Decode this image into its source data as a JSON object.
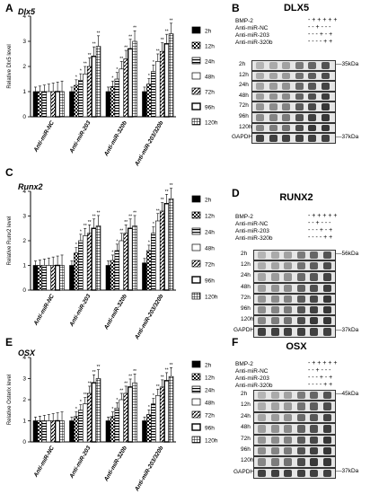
{
  "panels": {
    "A": "A",
    "B": "B",
    "C": "C",
    "D": "D",
    "E": "E",
    "F": "F"
  },
  "legend_labels": [
    "2h",
    "12h",
    "24h",
    "48h",
    "72h",
    "96h",
    "120h"
  ],
  "chart_data": [
    {
      "type": "bar",
      "panel": "A",
      "title": "Dlx5",
      "ylabel": "Relative Dlx5 level",
      "ylim": [
        0,
        4
      ],
      "yticks": [
        "0",
        "1",
        "2",
        "3",
        "4"
      ],
      "categories": [
        "Anti-miR-NC",
        "Anti-miR-203",
        "Anti-miR-320b",
        "Anti-miR-203/320b"
      ],
      "series": [
        {
          "name": "2h",
          "values": [
            1.0,
            1.0,
            1.0,
            1.0
          ]
        },
        {
          "name": "12h",
          "values": [
            1.0,
            1.25,
            1.2,
            1.3
          ]
        },
        {
          "name": "24h",
          "values": [
            1.0,
            1.45,
            1.5,
            1.8
          ]
        },
        {
          "name": "48h",
          "values": [
            1.0,
            1.7,
            1.9,
            2.2
          ]
        },
        {
          "name": "72h",
          "values": [
            1.0,
            2.0,
            2.3,
            2.6
          ]
        },
        {
          "name": "96h",
          "values": [
            1.0,
            2.4,
            2.7,
            2.9
          ]
        },
        {
          "name": "120h",
          "values": [
            1.0,
            2.8,
            3.0,
            3.3
          ]
        }
      ],
      "annotations": [
        "*",
        "**"
      ]
    },
    {
      "type": "bar",
      "panel": "C",
      "title": "Runx2",
      "ylabel": "Relative Runx2 level",
      "ylim": [
        0,
        4
      ],
      "yticks": [
        "0",
        "1",
        "2",
        "3",
        "4"
      ],
      "categories": [
        "Anti-miR-NC",
        "Anti-miR-203",
        "Anti-miR-320b",
        "Anti-miR-203/320b"
      ],
      "series": [
        {
          "name": "2h",
          "values": [
            1.0,
            1.0,
            1.0,
            1.1
          ]
        },
        {
          "name": "12h",
          "values": [
            1.0,
            1.5,
            1.2,
            1.6
          ]
        },
        {
          "name": "24h",
          "values": [
            1.0,
            2.0,
            1.6,
            2.3
          ]
        },
        {
          "name": "48h",
          "values": [
            1.0,
            2.2,
            2.0,
            2.8
          ]
        },
        {
          "name": "72h",
          "values": [
            1.0,
            2.3,
            2.3,
            3.2
          ]
        },
        {
          "name": "96h",
          "values": [
            1.0,
            2.5,
            2.5,
            3.5
          ]
        },
        {
          "name": "120h",
          "values": [
            1.0,
            2.6,
            2.6,
            3.7
          ]
        }
      ],
      "annotations": [
        "*",
        "**"
      ]
    },
    {
      "type": "bar",
      "panel": "E",
      "title": "OSX",
      "ylabel": "Relative Osterix level",
      "ylim": [
        0,
        4
      ],
      "yticks": [
        "0",
        "1",
        "2",
        "3",
        "4"
      ],
      "categories": [
        "Anti-miR-NC",
        "Anti-miR-203",
        "Anti-miR-320b",
        "Anti-miR-203/320b"
      ],
      "series": [
        {
          "name": "2h",
          "values": [
            1.0,
            1.0,
            1.0,
            1.0
          ]
        },
        {
          "name": "12h",
          "values": [
            1.0,
            1.2,
            1.2,
            1.3
          ]
        },
        {
          "name": "24h",
          "values": [
            1.0,
            1.5,
            1.6,
            1.8
          ]
        },
        {
          "name": "48h",
          "values": [
            1.0,
            1.8,
            2.0,
            2.2
          ]
        },
        {
          "name": "72h",
          "values": [
            1.0,
            2.3,
            2.3,
            2.6
          ]
        },
        {
          "name": "96h",
          "values": [
            1.0,
            2.8,
            2.6,
            2.9
          ]
        },
        {
          "name": "120h",
          "values": [
            1.0,
            3.0,
            2.8,
            3.1
          ]
        }
      ],
      "annotations": [
        "*",
        "**"
      ]
    }
  ],
  "blots": {
    "B": {
      "title": "DLX5",
      "treatments": [
        {
          "label": "BMP-2",
          "signs": "-   +   +   +   +   +"
        },
        {
          "label": "Anti-miR-NC",
          "signs": "-   -   +   -   -   -"
        },
        {
          "label": "Anti-miR-203",
          "signs": "-   -   -   +   -   +"
        },
        {
          "label": "Anti-miR-320b",
          "signs": "-   -   -   -   +   +"
        }
      ],
      "rows": [
        "2h",
        "12h",
        "24h",
        "48h",
        "72h",
        "96h",
        "120h",
        "GAPDH"
      ],
      "kda": [
        {
          "row": "2h",
          "label": "35kDa"
        },
        {
          "row": "GAPDH",
          "label": "37kDa"
        }
      ]
    },
    "D": {
      "title": "RUNX2",
      "treatments": [
        {
          "label": "BMP-2",
          "signs": "-   +   +   +   +   +"
        },
        {
          "label": "Anti-miR-NC",
          "signs": "-   -   +   -   -   -"
        },
        {
          "label": "Anti-miR-203",
          "signs": "-   -   -   +   -   +"
        },
        {
          "label": "Anti-miR-320b",
          "signs": "-   -   -   -   +   +"
        }
      ],
      "rows": [
        "2h",
        "12h",
        "24h",
        "48h",
        "72h",
        "96h",
        "120h",
        "GAPDH"
      ],
      "kda": [
        {
          "row": "2h",
          "label": "56kDa"
        },
        {
          "row": "GAPDH",
          "label": "37kDa"
        }
      ]
    },
    "F": {
      "title": "OSX",
      "treatments": [
        {
          "label": "BMP-2",
          "signs": "-   +   +   +   +   +"
        },
        {
          "label": "Anti-miR-NC",
          "signs": "-   -   +   -   -   -"
        },
        {
          "label": "Anti-miR-203",
          "signs": "-   -   -   +   -   +"
        },
        {
          "label": "Anti-miR-320b",
          "signs": "-   -   -   -   +   +"
        }
      ],
      "rows": [
        "2h",
        "12h",
        "24h",
        "48h",
        "72h",
        "96h",
        "120h",
        "GAPDH"
      ],
      "kda": [
        {
          "row": "2h",
          "label": "45kDa"
        },
        {
          "row": "GAPDH",
          "label": "37kDa"
        }
      ]
    }
  }
}
